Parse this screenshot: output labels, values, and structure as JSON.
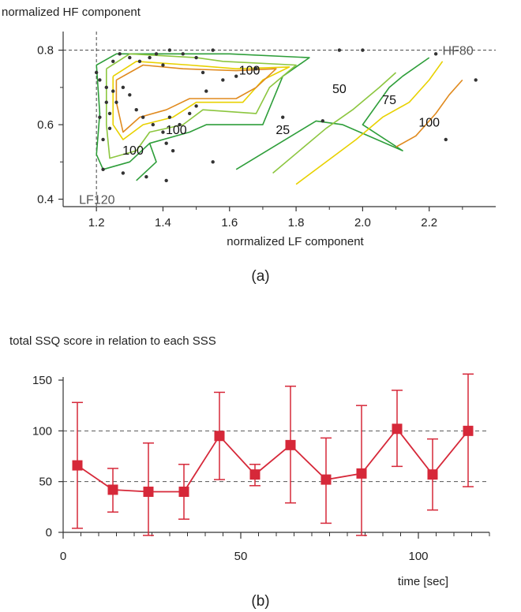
{
  "chart_data": [
    {
      "type": "contour",
      "panel_label": "(a)",
      "ylabel": "normalized HF component",
      "xlabel": "normalized LF component",
      "xlim": [
        1.1,
        2.4
      ],
      "ylim": [
        0.38,
        0.85
      ],
      "x_ticks": [
        1.2,
        1.4,
        1.6,
        1.8,
        2.0,
        2.2
      ],
      "x_tick_labels": [
        "1.2",
        "1.4",
        "1.6",
        "1.8",
        "2.0",
        "2.2"
      ],
      "y_ticks": [
        0.4,
        0.6,
        0.8
      ],
      "y_tick_labels": [
        "0.4",
        "0.6",
        "0.8"
      ],
      "reference_lines": [
        {
          "orientation": "horizontal",
          "value": 0.8,
          "label": "HF80"
        },
        {
          "orientation": "vertical",
          "value": 1.2,
          "label": "LF120"
        }
      ],
      "contour_colors": {
        "25": "#2e9e3a",
        "50": "#8cc63f",
        "75": "#e8d100",
        "100": "#e08a1e"
      },
      "contour_labels": [
        {
          "text": "100",
          "x": 1.66,
          "y": 0.735
        },
        {
          "text": "50",
          "x": 1.93,
          "y": 0.685
        },
        {
          "text": "75",
          "x": 2.08,
          "y": 0.655
        },
        {
          "text": "25",
          "x": 1.76,
          "y": 0.575
        },
        {
          "text": "100",
          "x": 2.2,
          "y": 0.595
        },
        {
          "text": "100",
          "x": 1.44,
          "y": 0.575
        },
        {
          "text": "100",
          "x": 1.31,
          "y": 0.52
        }
      ],
      "contours": [
        {
          "level": 25,
          "points": [
            [
              1.2,
              0.76
            ],
            [
              1.26,
              0.79
            ],
            [
              1.5,
              0.79
            ],
            [
              1.6,
              0.79
            ],
            [
              1.84,
              0.78
            ],
            [
              1.76,
              0.73
            ],
            [
              1.7,
              0.6
            ],
            [
              1.53,
              0.6
            ],
            [
              1.48,
              0.58
            ],
            [
              1.36,
              0.55
            ],
            [
              1.3,
              0.5
            ],
            [
              1.22,
              0.48
            ],
            [
              1.2,
              0.52
            ],
            [
              1.21,
              0.63
            ],
            [
              1.2,
              0.76
            ]
          ]
        },
        {
          "level": 25,
          "points": [
            [
              1.62,
              0.48
            ],
            [
              1.86,
              0.61
            ],
            [
              1.94,
              0.6
            ],
            [
              2.12,
              0.53
            ],
            [
              2.0,
              0.6
            ],
            [
              2.08,
              0.7
            ],
            [
              2.12,
              0.73
            ],
            [
              2.2,
              0.78
            ]
          ]
        },
        {
          "level": 25,
          "points": [
            [
              1.32,
              0.45
            ],
            [
              1.38,
              0.5
            ],
            [
              1.36,
              0.55
            ]
          ]
        },
        {
          "level": 50,
          "points": [
            [
              1.23,
              0.75
            ],
            [
              1.3,
              0.79
            ],
            [
              1.5,
              0.78
            ],
            [
              1.58,
              0.77
            ],
            [
              1.8,
              0.76
            ],
            [
              1.72,
              0.7
            ],
            [
              1.68,
              0.63
            ],
            [
              1.52,
              0.64
            ],
            [
              1.46,
              0.6
            ],
            [
              1.36,
              0.58
            ],
            [
              1.32,
              0.53
            ],
            [
              1.24,
              0.51
            ],
            [
              1.23,
              0.6
            ],
            [
              1.23,
              0.75
            ]
          ]
        },
        {
          "level": 50,
          "points": [
            [
              1.73,
              0.47
            ],
            [
              1.89,
              0.59
            ],
            [
              1.97,
              0.64
            ],
            [
              2.05,
              0.7
            ],
            [
              2.1,
              0.74
            ]
          ]
        },
        {
          "level": 75,
          "points": [
            [
              1.25,
              0.73
            ],
            [
              1.32,
              0.77
            ],
            [
              1.48,
              0.76
            ],
            [
              1.62,
              0.75
            ],
            [
              1.78,
              0.755
            ],
            [
              1.7,
              0.72
            ],
            [
              1.64,
              0.66
            ],
            [
              1.5,
              0.66
            ],
            [
              1.43,
              0.62
            ],
            [
              1.34,
              0.6
            ],
            [
              1.28,
              0.56
            ],
            [
              1.25,
              0.6
            ],
            [
              1.25,
              0.73
            ]
          ]
        },
        {
          "level": 75,
          "points": [
            [
              1.8,
              0.44
            ],
            [
              1.98,
              0.56
            ],
            [
              2.06,
              0.62
            ],
            [
              2.14,
              0.66
            ],
            [
              2.2,
              0.72
            ],
            [
              2.24,
              0.77
            ]
          ]
        },
        {
          "level": 100,
          "points": [
            [
              1.26,
              0.72
            ],
            [
              1.34,
              0.76
            ],
            [
              1.46,
              0.75
            ],
            [
              1.62,
              0.745
            ],
            [
              1.74,
              0.75
            ],
            [
              1.68,
              0.7
            ],
            [
              1.62,
              0.67
            ],
            [
              1.48,
              0.67
            ],
            [
              1.41,
              0.64
            ],
            [
              1.33,
              0.62
            ],
            [
              1.28,
              0.58
            ],
            [
              1.26,
              0.66
            ],
            [
              1.26,
              0.72
            ]
          ]
        },
        {
          "level": 100,
          "points": [
            [
              2.1,
              0.54
            ],
            [
              2.16,
              0.57
            ],
            [
              2.22,
              0.63
            ],
            [
              2.26,
              0.68
            ],
            [
              2.3,
              0.72
            ]
          ]
        }
      ],
      "points": [
        [
          1.2,
          0.74
        ],
        [
          1.21,
          0.72
        ],
        [
          1.23,
          0.7
        ],
        [
          1.25,
          0.77
        ],
        [
          1.27,
          0.79
        ],
        [
          1.3,
          0.78
        ],
        [
          1.33,
          0.77
        ],
        [
          1.36,
          0.78
        ],
        [
          1.38,
          0.79
        ],
        [
          1.4,
          0.76
        ],
        [
          1.42,
          0.8
        ],
        [
          1.46,
          0.79
        ],
        [
          1.5,
          0.78
        ],
        [
          1.52,
          0.74
        ],
        [
          1.55,
          0.8
        ],
        [
          1.58,
          0.72
        ],
        [
          1.62,
          0.73
        ],
        [
          1.68,
          0.75
        ],
        [
          1.76,
          0.62
        ],
        [
          1.88,
          0.61
        ],
        [
          1.93,
          0.8
        ],
        [
          2.0,
          0.8
        ],
        [
          2.22,
          0.79
        ],
        [
          2.34,
          0.72
        ],
        [
          2.25,
          0.56
        ],
        [
          1.55,
          0.5
        ],
        [
          1.41,
          0.45
        ],
        [
          1.35,
          0.46
        ],
        [
          1.28,
          0.47
        ],
        [
          1.22,
          0.48
        ],
        [
          1.22,
          0.56
        ],
        [
          1.24,
          0.59
        ],
        [
          1.24,
          0.63
        ],
        [
          1.26,
          0.66
        ],
        [
          1.28,
          0.7
        ],
        [
          1.3,
          0.68
        ],
        [
          1.32,
          0.64
        ],
        [
          1.34,
          0.62
        ],
        [
          1.37,
          0.6
        ],
        [
          1.4,
          0.58
        ],
        [
          1.42,
          0.62
        ],
        [
          1.45,
          0.6
        ],
        [
          1.48,
          0.63
        ],
        [
          1.5,
          0.65
        ],
        [
          1.53,
          0.69
        ],
        [
          1.41,
          0.55
        ],
        [
          1.43,
          0.53
        ],
        [
          1.21,
          0.62
        ],
        [
          1.23,
          0.66
        ],
        [
          1.25,
          0.69
        ]
      ]
    },
    {
      "type": "line",
      "panel_label": "(b)",
      "title": "total SSQ score in relation to each SSS",
      "xlabel": "time [sec]",
      "ylabel": "",
      "xlim": [
        0,
        120
      ],
      "ylim": [
        0,
        150
      ],
      "x_ticks": [
        0,
        50,
        100
      ],
      "x_tick_labels": [
        "0",
        "50",
        "100"
      ],
      "x_minor_ticks": [
        5,
        10,
        15,
        20,
        25,
        30,
        35,
        40,
        45,
        55,
        60,
        65,
        70,
        75,
        80,
        85,
        90,
        95,
        105,
        110,
        115,
        120
      ],
      "y_ticks": [
        0,
        50,
        100,
        150
      ],
      "y_tick_labels": [
        "0",
        "50",
        "100",
        "150"
      ],
      "grid_lines_y": [
        50,
        100
      ],
      "color": "#d62839",
      "series": [
        {
          "x": [
            4,
            14,
            24,
            34,
            44,
            54,
            64,
            74,
            84,
            94,
            104,
            114
          ],
          "y": [
            66,
            42,
            40,
            40,
            95,
            57,
            86,
            52,
            58,
            102,
            57,
            100
          ],
          "err_low": [
            4,
            20,
            -3,
            13,
            52,
            46,
            29,
            9,
            -3,
            65,
            22,
            45
          ],
          "err_high": [
            128,
            63,
            88,
            67,
            138,
            67,
            144,
            93,
            125,
            140,
            92,
            156
          ]
        }
      ]
    }
  ]
}
